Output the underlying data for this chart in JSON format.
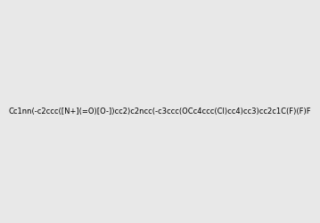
{
  "smiles": "Cc1nn(-c2ccc([N+](=O)[O-])cc2)c2ncc(-c3ccc(OCc4ccc(Cl)cc4)cc3)cc2c1C(F)(F)F",
  "image_size": 300,
  "background_color": "#e8e8e8"
}
